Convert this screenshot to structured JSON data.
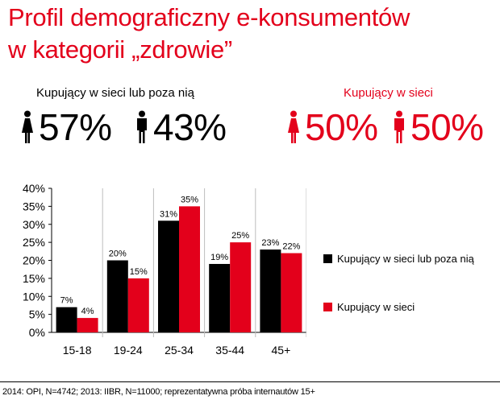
{
  "title": {
    "line1": "Profil demograficzny e-konsumentów",
    "line2": "w kategorii „zdrowie”"
  },
  "groups": [
    {
      "label": "Kupujący w sieci lub poza nią",
      "color": "#000000",
      "female": {
        "icon": "woman-icon",
        "value": "57%"
      },
      "male": {
        "icon": "man-icon",
        "value": "43%"
      }
    },
    {
      "label": "Kupujący w sieci",
      "color": "#e3001b",
      "female": {
        "icon": "woman-icon",
        "value": "50%"
      },
      "male": {
        "icon": "man-icon",
        "value": "50%"
      }
    }
  ],
  "chart_data": {
    "type": "bar",
    "categories": [
      "15-18",
      "19-24",
      "25-34",
      "35-44",
      "45+"
    ],
    "series": [
      {
        "name": "Kupujący w sieci lub poza nią",
        "color": "#000000",
        "values": [
          7,
          20,
          31,
          19,
          23
        ]
      },
      {
        "name": "Kupujący w sieci",
        "color": "#e3001b",
        "values": [
          4,
          15,
          35,
          25,
          22
        ]
      }
    ],
    "data_labels": [
      [
        "7%",
        "20%",
        "31%",
        "19%",
        "23%"
      ],
      [
        "4%",
        "15%",
        "35%",
        "25%",
        "22%"
      ]
    ],
    "yticks": [
      "0%",
      "5%",
      "10%",
      "15%",
      "20%",
      "25%",
      "30%",
      "35%",
      "40%"
    ],
    "ylim": [
      0,
      40
    ],
    "grid": "vertical separators between categories",
    "legend_position": "right"
  },
  "footer": "2014: OPI, N=4742; 2013: IIBR, N=11000; reprezentatywna próba internautów 15+"
}
